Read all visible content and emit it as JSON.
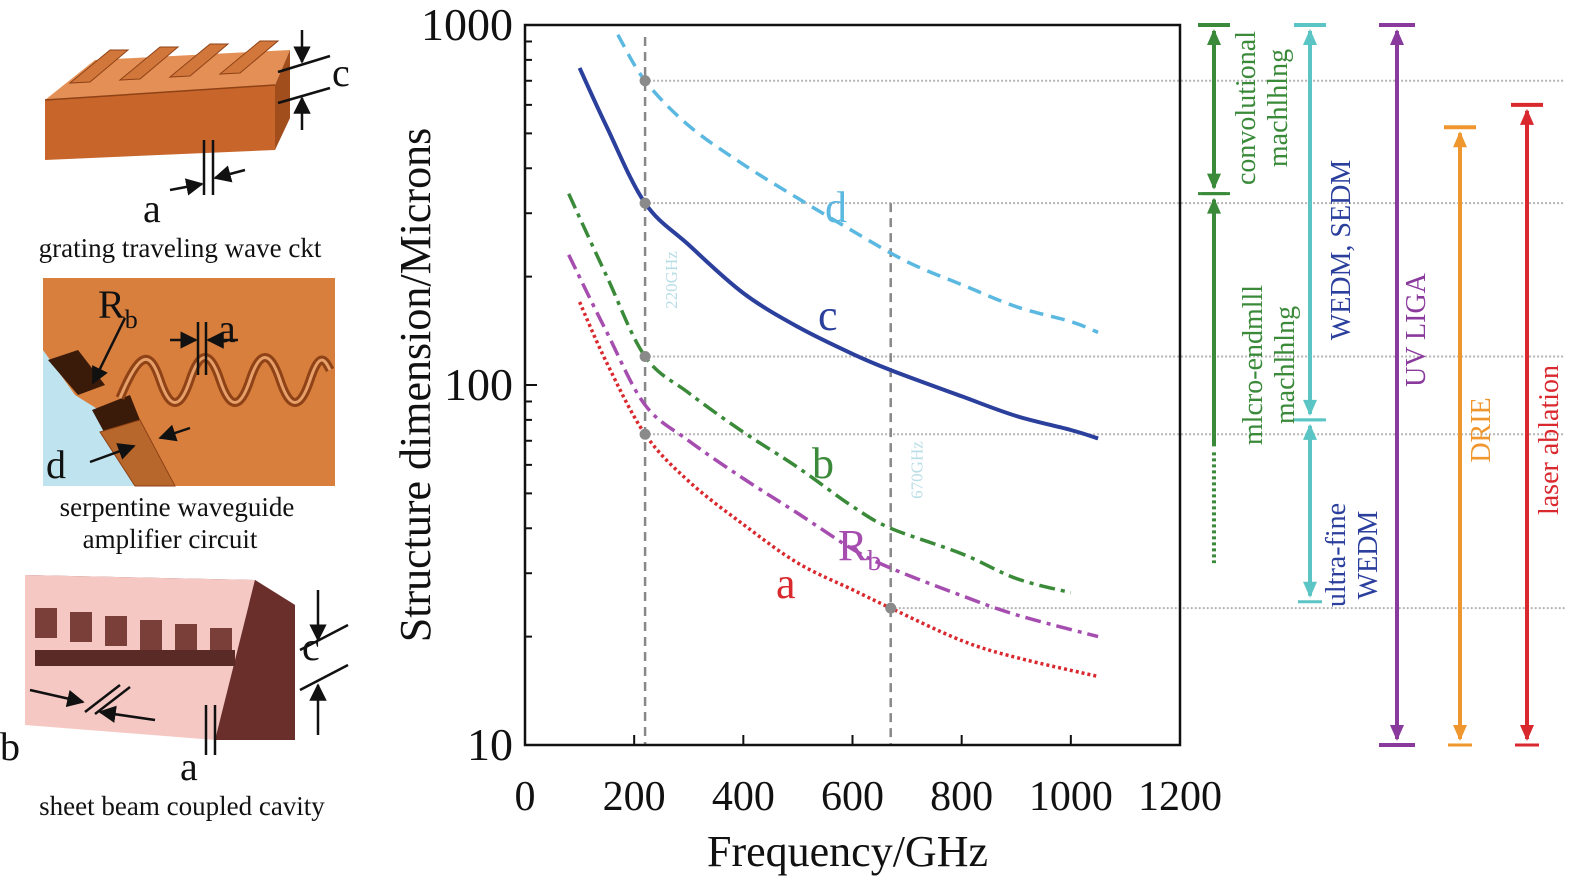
{
  "figures": {
    "grating": {
      "caption": "grating traveling wave ckt",
      "labels": {
        "a": "a",
        "c": "c"
      }
    },
    "serpentine": {
      "caption_line1": "serpentine waveguide",
      "caption_line2": "amplifier circuit",
      "labels": {
        "rb_main": "R",
        "rb_sub": "b",
        "a": "a",
        "d": "d"
      }
    },
    "sheet": {
      "caption": "sheet beam coupled cavity",
      "labels": {
        "b": "b",
        "a": "a",
        "c": "c"
      }
    }
  },
  "chart_data": {
    "type": "line",
    "xlabel": "Frequency/GHz",
    "ylabel": "Structure dimension/Microns",
    "xlim": [
      0,
      1200
    ],
    "ylim": [
      10,
      1000
    ],
    "yscale": "log",
    "xticks": [
      "0",
      "200",
      "400",
      "600",
      "800",
      "1000",
      "1200"
    ],
    "yticks": [
      {
        "value": 10,
        "label": "10"
      },
      {
        "value": 100,
        "label": "100"
      },
      {
        "value": 1000,
        "label": "1000"
      }
    ],
    "grid": false,
    "series": [
      {
        "name": "d",
        "color": "#5bb8e0",
        "style": "dashed",
        "points": [
          [
            170,
            940
          ],
          [
            220,
            700
          ],
          [
            300,
            525
          ],
          [
            400,
            410
          ],
          [
            500,
            330
          ],
          [
            600,
            268
          ],
          [
            700,
            220
          ],
          [
            800,
            190
          ],
          [
            900,
            165
          ],
          [
            1000,
            150
          ],
          [
            1050,
            140
          ]
        ]
      },
      {
        "name": "c",
        "color": "#2b3f9c",
        "style": "solid",
        "points": [
          [
            100,
            760
          ],
          [
            150,
            520
          ],
          [
            220,
            320
          ],
          [
            300,
            245
          ],
          [
            400,
            180
          ],
          [
            500,
            145
          ],
          [
            600,
            122
          ],
          [
            670,
            110
          ],
          [
            800,
            93
          ],
          [
            900,
            82
          ],
          [
            1000,
            75
          ],
          [
            1050,
            71
          ]
        ]
      },
      {
        "name": "b",
        "color": "#3a8a3a",
        "style": "dashdot",
        "points": [
          [
            80,
            340
          ],
          [
            150,
            200
          ],
          [
            220,
            120
          ],
          [
            300,
            95
          ],
          [
            400,
            74
          ],
          [
            500,
            59
          ],
          [
            600,
            46
          ],
          [
            670,
            40
          ],
          [
            800,
            34
          ],
          [
            900,
            29
          ],
          [
            1000,
            26.5
          ]
        ]
      },
      {
        "name_main": "R",
        "name_sub": "b",
        "color": "#a64db0",
        "style": "dashdot",
        "points": [
          [
            80,
            230
          ],
          [
            150,
            140
          ],
          [
            220,
            88
          ],
          [
            300,
            70
          ],
          [
            400,
            55
          ],
          [
            500,
            44
          ],
          [
            600,
            35
          ],
          [
            670,
            31
          ],
          [
            800,
            26
          ],
          [
            900,
            23
          ],
          [
            1050,
            20
          ]
        ]
      },
      {
        "name": "a",
        "color": "#d9282e",
        "style": "dotted",
        "points": [
          [
            100,
            170
          ],
          [
            150,
            115
          ],
          [
            220,
            73
          ],
          [
            300,
            54
          ],
          [
            400,
            41
          ],
          [
            500,
            32
          ],
          [
            600,
            27
          ],
          [
            670,
            24
          ],
          [
            800,
            19.5
          ],
          [
            900,
            17.5
          ],
          [
            1050,
            15.5
          ]
        ]
      }
    ],
    "vlines": [
      {
        "x": 220,
        "label": "220GHz"
      },
      {
        "x": 670,
        "label": "670GHz"
      }
    ],
    "hlines": [
      700,
      320,
      120,
      73,
      24
    ],
    "markers": [
      [
        220,
        700
      ],
      [
        220,
        320
      ],
      [
        220,
        120
      ],
      [
        220,
        73
      ],
      [
        670,
        24
      ]
    ]
  },
  "processes": [
    {
      "id": "conv",
      "line1": "convolutional",
      "line2": "machlhlng",
      "color": "#3a8a3a",
      "from": 1000,
      "to": 340
    },
    {
      "id": "micro",
      "line1": "mlcro-endmlll",
      "line2": "machlhlng",
      "color": "#3a8a3a",
      "from": 340,
      "to": 65,
      "dotted_to": 32
    },
    {
      "id": "wedm",
      "line1": "WEDM, SEDM",
      "color": "#5bc4c4",
      "text_color": "#2b3f9c",
      "from": 1000,
      "to": 80
    },
    {
      "id": "ufwedm",
      "line1": "ultra-fine",
      "line2": "WEDM",
      "color": "#5bc4c4",
      "text_color": "#2b3f9c",
      "from": 80,
      "to": 25
    },
    {
      "id": "uvliga",
      "line1": "UV LIGA",
      "color": "#8a3a9c",
      "from": 1000,
      "to": 10
    },
    {
      "id": "drie",
      "line1": "DRIE",
      "color": "#f0962e",
      "from": 520,
      "to": 10
    },
    {
      "id": "laser",
      "line1": "laser ablation",
      "color": "#d9282e",
      "from": 600,
      "to": 10
    }
  ]
}
